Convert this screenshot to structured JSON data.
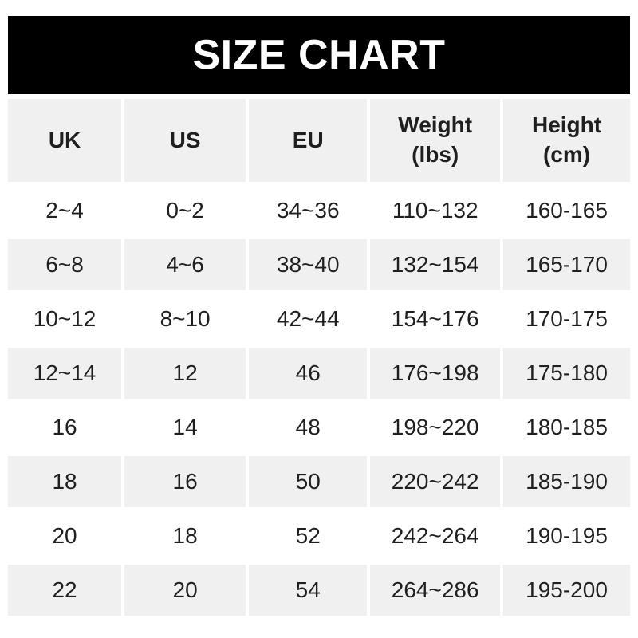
{
  "colors": {
    "banner-bg": "#000000",
    "banner-text": "#ffffff",
    "row-alt-bg": "#f1f0f0",
    "table-text": "#1f1f1f",
    "page-bg": "#ffffff"
  },
  "chart_data": {
    "type": "table",
    "title": "SIZE CHART",
    "headers": [
      "UK",
      "US",
      "EU",
      "Weight\n(lbs)",
      "Height\n(cm)"
    ],
    "rows": [
      [
        "2~4",
        "0~2",
        "34~36",
        "110~132",
        "160-165"
      ],
      [
        "6~8",
        "4~6",
        "38~40",
        "132~154",
        "165-170"
      ],
      [
        "10~12",
        "8~10",
        "42~44",
        "154~176",
        "170-175"
      ],
      [
        "12~14",
        "12",
        "46",
        "176~198",
        "175-180"
      ],
      [
        "16",
        "14",
        "48",
        "198~220",
        "180-185"
      ],
      [
        "18",
        "16",
        "50",
        "220~242",
        "185-190"
      ],
      [
        "20",
        "18",
        "52",
        "242~264",
        "190-195"
      ],
      [
        "22",
        "20",
        "54",
        "264~286",
        "195-200"
      ]
    ]
  }
}
